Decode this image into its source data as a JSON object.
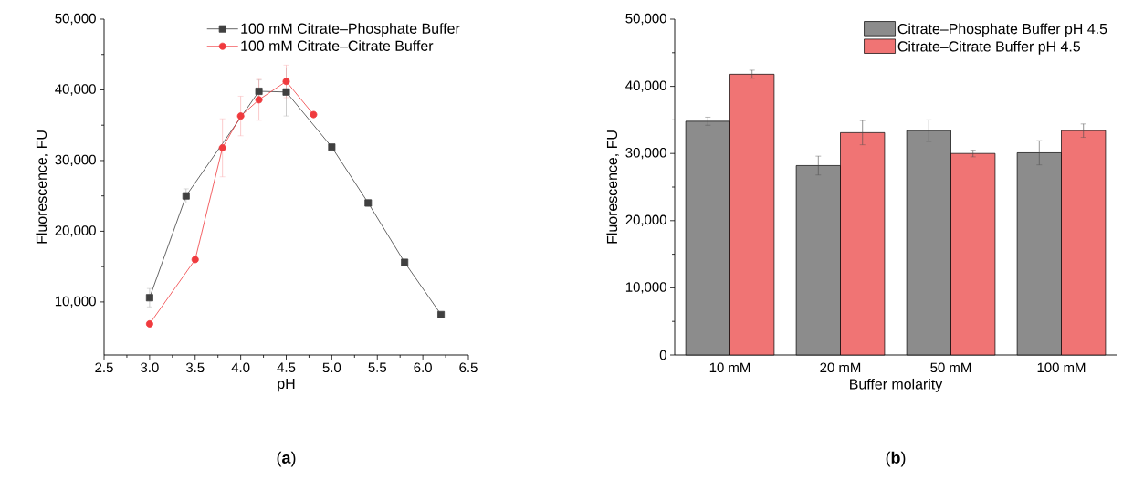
{
  "chart_data": [
    {
      "type": "line",
      "xlabel": "pH",
      "ylabel": "Fluorescence, FU",
      "xlim": [
        2.5,
        6.5
      ],
      "ylim": [
        2500,
        50000
      ],
      "xticks": [
        {
          "value": 2.5,
          "label": "2.5"
        },
        {
          "value": 3,
          "label": "3.0"
        },
        {
          "value": 3.5,
          "label": "3.5"
        },
        {
          "value": 4,
          "label": "4.0"
        },
        {
          "value": 4.5,
          "label": "4.5"
        },
        {
          "value": 5,
          "label": "5.0"
        },
        {
          "value": 5.5,
          "label": "5.5"
        },
        {
          "value": 6,
          "label": "6.0"
        },
        {
          "value": 6.5,
          "label": "6.5"
        }
      ],
      "yticks": [
        {
          "value": 10000,
          "label": "10,000"
        },
        {
          "value": 20000,
          "label": "20,000"
        },
        {
          "value": 30000,
          "label": "30,000"
        },
        {
          "value": 40000,
          "label": "40,000"
        },
        {
          "value": 50000,
          "label": "50,000"
        }
      ],
      "legend": "top right",
      "grid": false,
      "annotations": [
        "(**a**)"
      ],
      "series": [
        {
          "name": "100 mM Citrate–Phosphate Buffer",
          "color": "#404040",
          "marker": "square",
          "x": [
            3.0,
            3.4,
            4.0,
            4.2,
            4.5,
            5.0,
            5.4,
            5.8,
            6.2
          ],
          "values": [
            10600,
            25000,
            null,
            39800,
            39700,
            31900,
            24000,
            15600,
            8200
          ],
          "errors": [
            1300,
            1000,
            null,
            1600,
            3400,
            null,
            500,
            400,
            null
          ]
        },
        {
          "name": "100 mM Citrate–Citrate Buffer",
          "color": "#f03a3e",
          "marker": "circle",
          "x": [
            3.0,
            3.5,
            3.8,
            4.0,
            4.2,
            4.5,
            4.8
          ],
          "values": [
            6900,
            16000,
            31800,
            36300,
            38600,
            41200,
            36500
          ],
          "errors": [
            null,
            null,
            4100,
            2800,
            2900,
            2300,
            null
          ]
        }
      ]
    },
    {
      "type": "bar",
      "xlabel": "Buffer molarity",
      "ylabel": "Fluorescence, FU",
      "categories": [
        "10 mM",
        "20 mM",
        "50 mM",
        "100 mM"
      ],
      "ylim": [
        0,
        50000
      ],
      "yticks": [
        0,
        {
          "value": 10000,
          "label": "10,000"
        },
        {
          "value": 20000,
          "label": "20,000"
        },
        {
          "value": 30000,
          "label": "30,000"
        },
        {
          "value": 40000,
          "label": "40,000"
        },
        {
          "value": 50000,
          "label": "50,000"
        }
      ],
      "legend": "top right",
      "grid": false,
      "annotations": [
        "(**b**)"
      ],
      "series": [
        {
          "name": "Citrate–Phosphate Buffer pH 4.5",
          "color": "#8c8c8c",
          "values": [
            34800,
            28200,
            33400,
            30100
          ],
          "errors": [
            600,
            1400,
            1600,
            1800
          ]
        },
        {
          "name": "Citrate–Citrate Buffer pH 4.5",
          "color": "#f07474",
          "values": [
            41800,
            33100,
            30000,
            33400
          ],
          "errors": [
            600,
            1800,
            500,
            1000
          ]
        }
      ]
    }
  ]
}
